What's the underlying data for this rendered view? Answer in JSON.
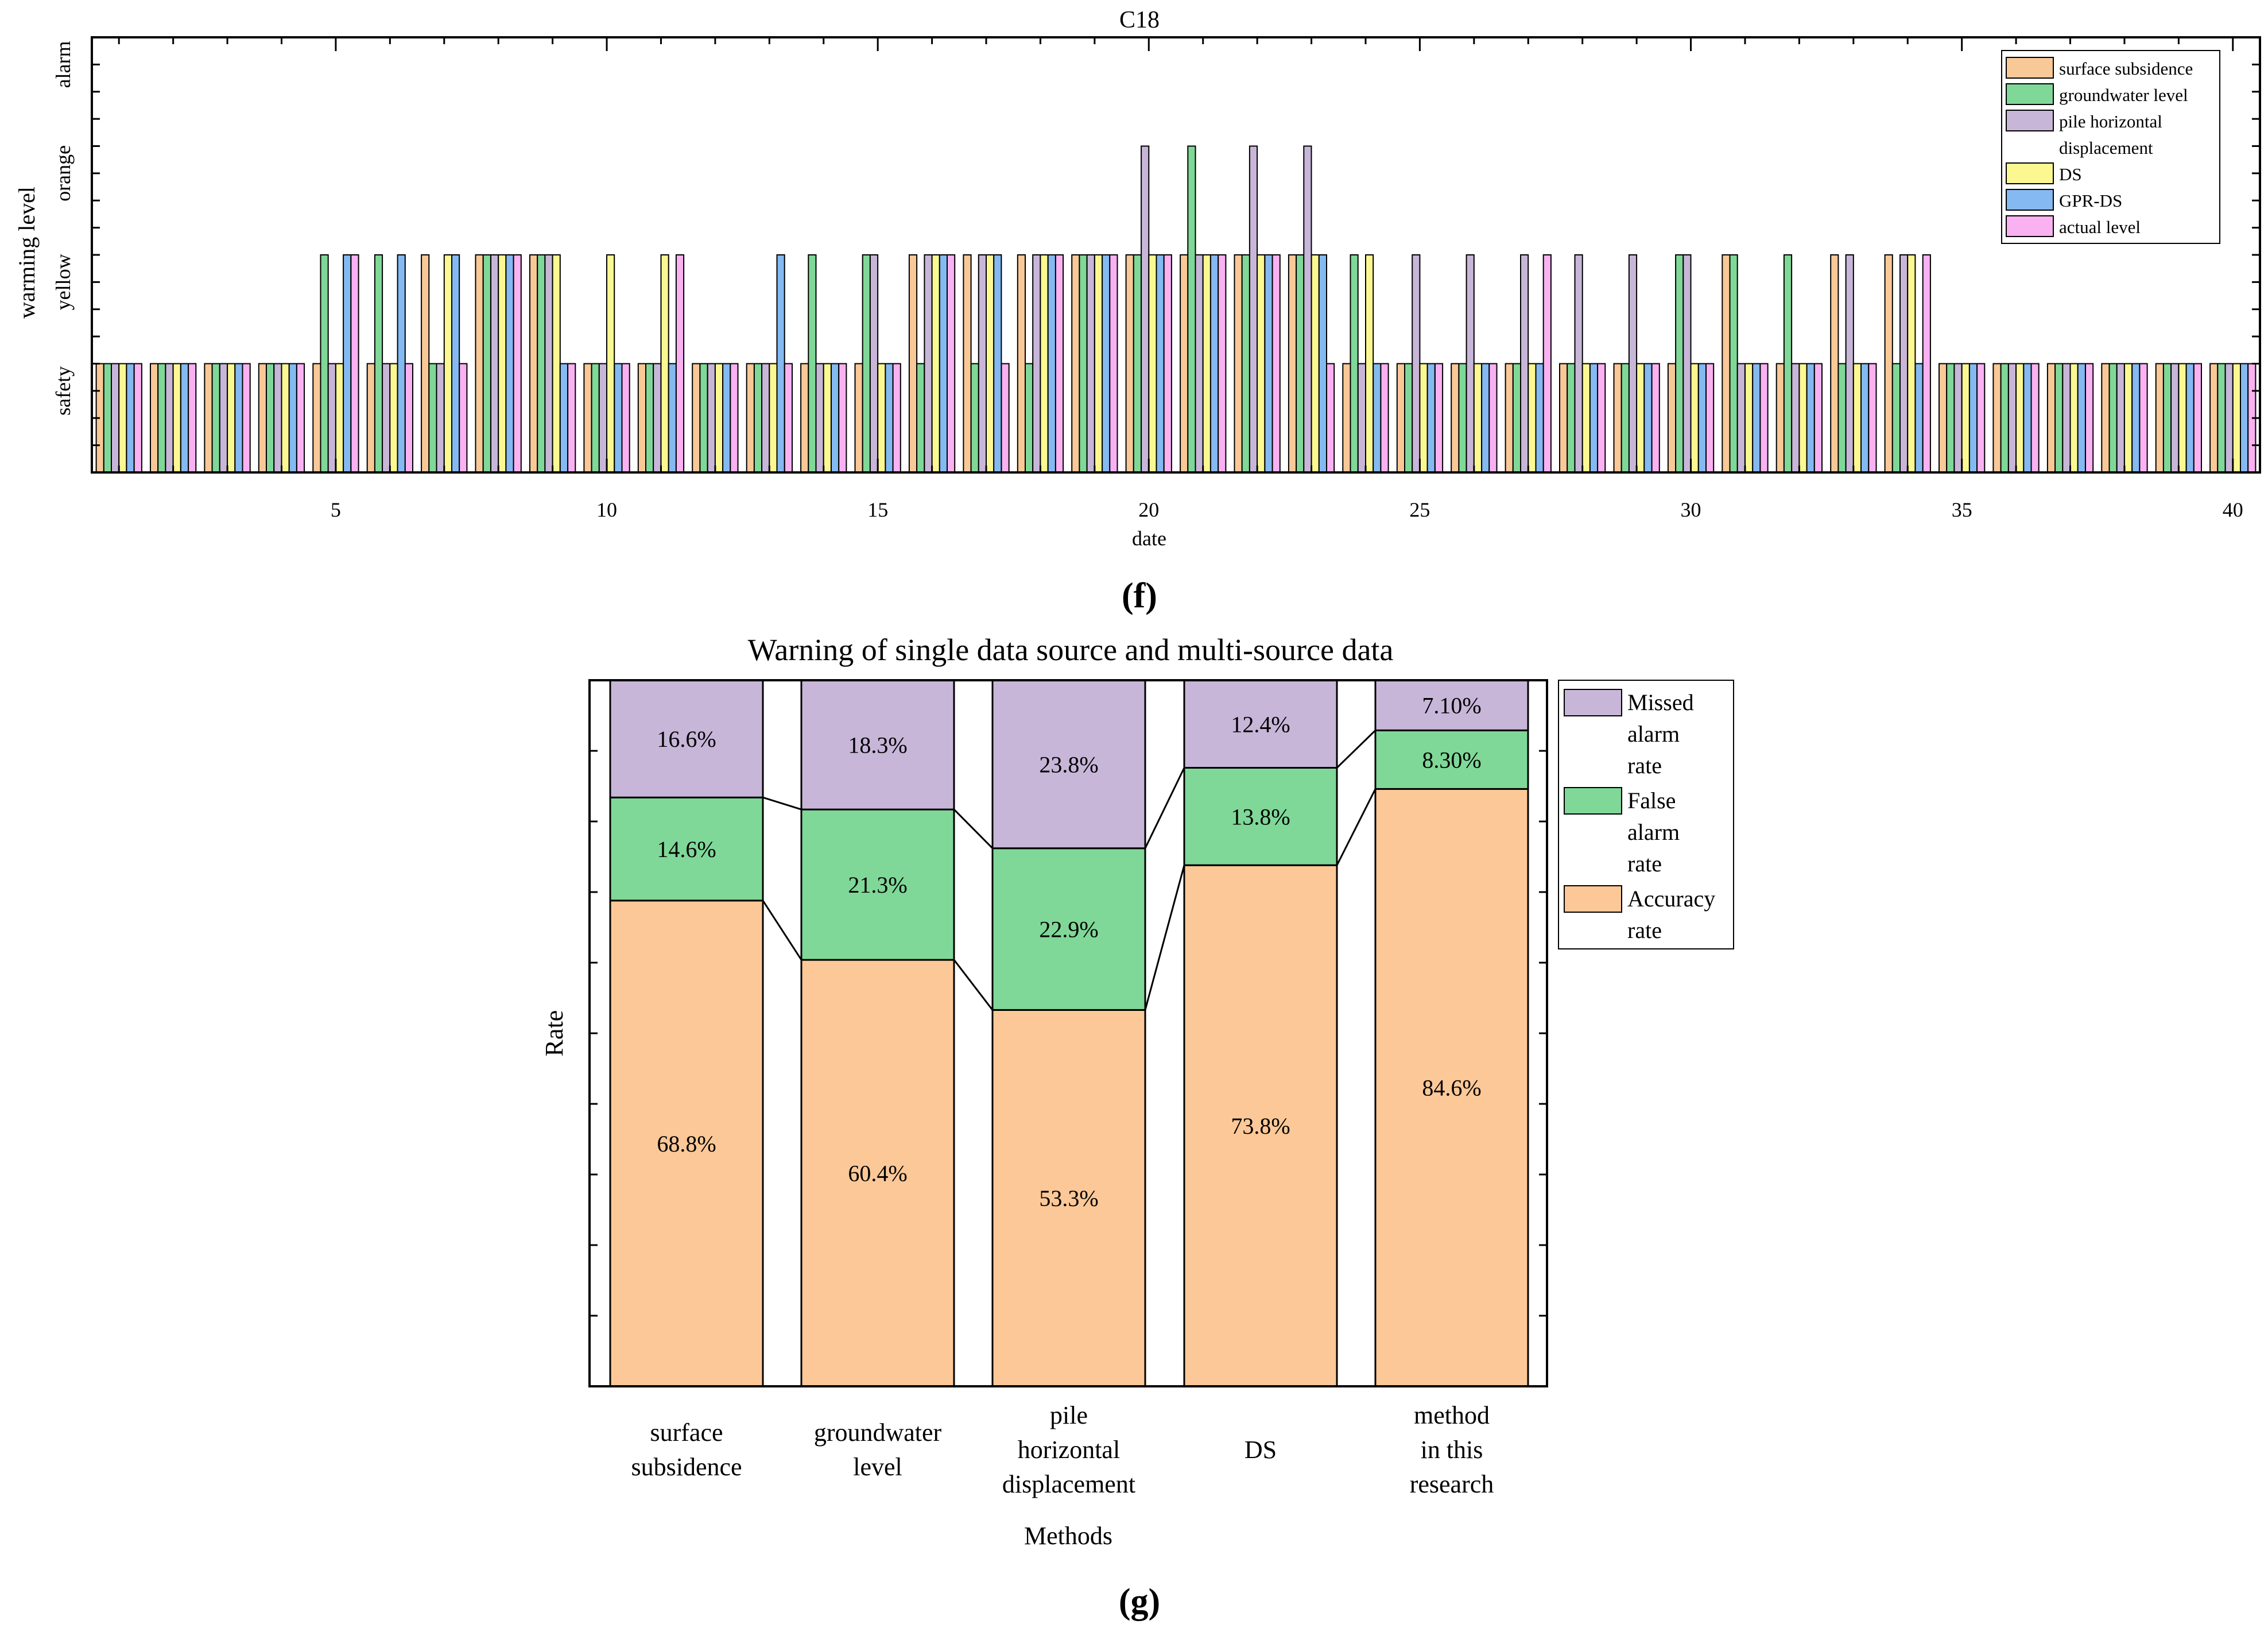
{
  "chart_data": [
    {
      "id": "f",
      "type": "bar",
      "title": "C18",
      "panel_label": "(f)",
      "xlabel": "date",
      "ylabel": "warming level",
      "level_labels": [
        "safety",
        "yellow",
        "orange",
        "alarm"
      ],
      "x_ticks": [
        5,
        10,
        15,
        20,
        25,
        30,
        35,
        40
      ],
      "xlim": [
        0.5,
        40.5
      ],
      "ylim": [
        0,
        4
      ],
      "legend": {
        "position": "top-right",
        "entries": [
          {
            "label": "surface subsidence",
            "color": "#f9c897"
          },
          {
            "label": "groundwater level",
            "color": "#7fd897"
          },
          {
            "label": "pile horizontal displacement",
            "color": "#c8b6d9"
          },
          {
            "label": "DS",
            "color": "#fbf891"
          },
          {
            "label": "GPR-DS",
            "color": "#84b9f1"
          },
          {
            "label": "actual level",
            "color": "#f9b1f2"
          }
        ]
      },
      "x": [
        1,
        2,
        3,
        4,
        5,
        6,
        7,
        8,
        9,
        10,
        11,
        12,
        13,
        14,
        15,
        16,
        17,
        18,
        19,
        20,
        21,
        22,
        23,
        24,
        25,
        26,
        27,
        28,
        29,
        30,
        31,
        32,
        33,
        34,
        35,
        36,
        37,
        38,
        39,
        40
      ],
      "series": [
        {
          "name": "surface subsidence",
          "values": [
            1,
            1,
            1,
            1,
            1,
            1,
            2,
            2,
            2,
            1,
            1,
            1,
            1,
            1,
            1,
            2,
            2,
            2,
            2,
            2,
            2,
            2,
            2,
            1,
            1,
            1,
            1,
            1,
            1,
            1,
            2,
            1,
            2,
            2,
            1,
            1,
            1,
            1,
            1,
            1
          ]
        },
        {
          "name": "groundwater level",
          "values": [
            1,
            1,
            1,
            1,
            2,
            2,
            1,
            2,
            2,
            1,
            1,
            1,
            1,
            2,
            2,
            1,
            1,
            1,
            2,
            2,
            3,
            2,
            2,
            2,
            1,
            1,
            1,
            1,
            1,
            2,
            2,
            2,
            1,
            1,
            1,
            1,
            1,
            1,
            1,
            1
          ]
        },
        {
          "name": "pile horizontal displacement",
          "values": [
            1,
            1,
            1,
            1,
            1,
            1,
            1,
            2,
            2,
            1,
            1,
            1,
            1,
            1,
            2,
            2,
            2,
            2,
            2,
            3,
            2,
            3,
            3,
            1,
            2,
            2,
            2,
            2,
            2,
            2,
            1,
            1,
            2,
            2,
            1,
            1,
            1,
            1,
            1,
            1
          ]
        },
        {
          "name": "DS",
          "values": [
            1,
            1,
            1,
            1,
            1,
            1,
            2,
            2,
            2,
            2,
            2,
            1,
            1,
            1,
            1,
            2,
            2,
            2,
            2,
            2,
            2,
            2,
            2,
            2,
            1,
            1,
            1,
            1,
            1,
            1,
            1,
            1,
            1,
            2,
            1,
            1,
            1,
            1,
            1,
            1
          ]
        },
        {
          "name": "GPR-DS",
          "values": [
            1,
            1,
            1,
            1,
            2,
            2,
            2,
            2,
            1,
            1,
            1,
            1,
            2,
            1,
            1,
            2,
            2,
            2,
            2,
            2,
            2,
            2,
            2,
            1,
            1,
            1,
            1,
            1,
            1,
            1,
            1,
            1,
            1,
            1,
            1,
            1,
            1,
            1,
            1,
            1
          ]
        },
        {
          "name": "actual level",
          "values": [
            1,
            1,
            1,
            1,
            2,
            1,
            1,
            2,
            1,
            1,
            2,
            1,
            1,
            1,
            1,
            2,
            1,
            2,
            2,
            2,
            2,
            2,
            1,
            1,
            1,
            1,
            2,
            1,
            1,
            1,
            1,
            1,
            1,
            2,
            1,
            1,
            1,
            1,
            1,
            1
          ]
        }
      ]
    },
    {
      "id": "g",
      "type": "bar",
      "stacked": true,
      "title": "Warning of single data source and multi-source data",
      "panel_label": "(g)",
      "xlabel": "Methods",
      "ylabel": "Rate",
      "ylim": [
        0,
        100
      ],
      "legend": {
        "position": "right",
        "entries": [
          {
            "label": "Missed alarm rate",
            "lines": [
              "Missed",
              "alarm",
              "rate"
            ],
            "color": "#c8b6d9"
          },
          {
            "label": "False alarm rate",
            "lines": [
              "False",
              "alarm",
              "rate"
            ],
            "color": "#7fd897"
          },
          {
            "label": "Accuracy rate",
            "lines": [
              "Accuracy",
              "rate"
            ],
            "color": "#fcc897"
          }
        ]
      },
      "categories": [
        {
          "label": "surface subsidence",
          "lines": [
            "surface",
            "subsidence"
          ]
        },
        {
          "label": "groundwater level",
          "lines": [
            "groundwater",
            "level"
          ]
        },
        {
          "label": "pile horizontal displacement",
          "lines": [
            "pile",
            "horizontal",
            "displacement"
          ]
        },
        {
          "label": "DS",
          "lines": [
            "DS"
          ]
        },
        {
          "label": "method in this research",
          "lines": [
            "method",
            "in this",
            "research"
          ]
        }
      ],
      "series": [
        {
          "name": "Accuracy rate",
          "values": [
            68.8,
            60.4,
            53.3,
            73.8,
            84.6
          ],
          "labels": [
            "68.8%",
            "60.4%",
            "53.3%",
            "73.8%",
            "84.6%"
          ]
        },
        {
          "name": "False alarm rate",
          "values": [
            14.6,
            21.3,
            22.9,
            13.8,
            8.3
          ],
          "labels": [
            "14.6%",
            "21.3%",
            "22.9%",
            "13.8%",
            "8.30%"
          ]
        },
        {
          "name": "Missed alarm rate",
          "values": [
            16.6,
            18.3,
            23.8,
            12.4,
            7.1
          ],
          "labels": [
            "16.6%",
            "18.3%",
            "23.8%",
            "12.4%",
            "7.10%"
          ]
        }
      ]
    }
  ]
}
